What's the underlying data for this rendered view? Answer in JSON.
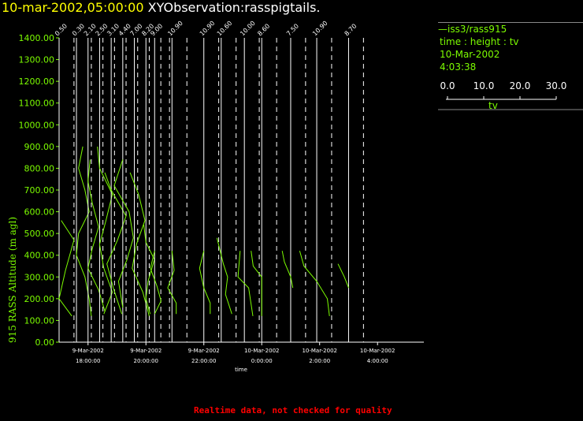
{
  "title": {
    "timestamp": "10-mar-2002,05:00:00",
    "name": "XYObservation:rasspigtails."
  },
  "legend": {
    "series": "—iss3/rass915",
    "axes": "time : height : tv",
    "date": "10-Mar-2002",
    "time": "4:03:38",
    "scale_ticks": [
      "0.0",
      "10.0",
      "20.0",
      "30.0"
    ],
    "scale_label": "tv"
  },
  "footer": "Realtime data, not checked for quality",
  "colors": {
    "data": "#7cfc00",
    "title_timestamp": "#ffff00",
    "warning": "#ff0000",
    "axis": "#ffffff"
  },
  "chart_data": {
    "type": "line",
    "ylabel": "915 RASS Altitude (m agl)",
    "xlabel": "time",
    "ylim": [
      0,
      1400
    ],
    "yticks": [
      "0.00",
      "100.00",
      "200.00",
      "300.00",
      "400.00",
      "500.00",
      "600.00",
      "700.00",
      "800.00",
      "900.00",
      "1000.00",
      "1100.00",
      "1200.00",
      "1300.00",
      "1400.00"
    ],
    "xticks": [
      {
        "date": "9-Mar-2002",
        "time": "18:00:00",
        "hour": 18
      },
      {
        "date": "9-Mar-2002",
        "time": "20:00:00",
        "hour": 20
      },
      {
        "date": "9-Mar-2002",
        "time": "22:00:00",
        "hour": 22
      },
      {
        "date": "10-Mar-2002",
        "time": "0:00:00",
        "hour": 24
      },
      {
        "date": "10-Mar-2002",
        "time": "2:00:00",
        "hour": 26
      },
      {
        "date": "10-Mar-2002",
        "time": "4:00:00",
        "hour": 28
      }
    ],
    "xlim_hours": [
      17.0,
      29.6
    ],
    "profiles": [
      {
        "hour": 17.0,
        "label": "0.50",
        "points": [
          [
            0.6,
            120
          ],
          [
            0.0,
            200
          ],
          [
            0.3,
            330
          ],
          [
            0.7,
            470
          ],
          [
            0.1,
            560
          ]
        ]
      },
      {
        "hour": 17.6,
        "label": "0.30",
        "points": [
          [
            0.3,
            900
          ],
          [
            0.1,
            800
          ],
          [
            0.4,
            700
          ],
          [
            0.6,
            600
          ],
          [
            0.1,
            500
          ],
          [
            0.0,
            400
          ],
          [
            0.4,
            300
          ],
          [
            0.6,
            200
          ],
          [
            0.7,
            120
          ]
        ]
      },
      {
        "hour": 18.0,
        "label": "2.10",
        "points": [
          [
            0.1,
            840
          ],
          [
            0.0,
            740
          ],
          [
            0.2,
            640
          ],
          [
            0.5,
            530
          ],
          [
            0.2,
            430
          ],
          [
            0.0,
            340
          ],
          [
            0.5,
            240
          ],
          [
            0.8,
            140
          ]
        ]
      },
      {
        "hour": 18.4,
        "label": "2.50",
        "points": [
          [
            -0.1,
            900
          ],
          [
            0.0,
            800
          ],
          [
            0.6,
            680
          ],
          [
            0.3,
            560
          ],
          [
            0.0,
            450
          ],
          [
            0.2,
            340
          ],
          [
            0.6,
            230
          ],
          [
            0.2,
            130
          ]
        ]
      },
      {
        "hour": 18.8,
        "label": "3.10",
        "points": [
          [
            -0.3,
            780
          ],
          [
            0.0,
            700
          ],
          [
            0.7,
            580
          ],
          [
            0.3,
            470
          ],
          [
            -0.2,
            360
          ],
          [
            0.1,
            250
          ],
          [
            0.5,
            130
          ]
        ]
      },
      {
        "hour": 19.2,
        "label": "4.40",
        "points": [
          [
            0.0,
            840
          ],
          [
            -0.4,
            720
          ],
          [
            0.3,
            600
          ],
          [
            0.5,
            480
          ],
          [
            0.2,
            380
          ],
          [
            -0.2,
            280
          ],
          [
            0.0,
            160
          ]
        ]
      },
      {
        "hour": 19.6,
        "label": "7.00",
        "points": [
          [
            -0.2,
            780
          ],
          [
            0.2,
            680
          ],
          [
            0.5,
            560
          ],
          [
            0.1,
            450
          ],
          [
            -0.1,
            340
          ],
          [
            0.4,
            230
          ],
          [
            0.7,
            120
          ]
        ]
      },
      {
        "hour": 20.0,
        "label": "8.20",
        "points": [
          [
            -0.1,
            540
          ],
          [
            0.0,
            460
          ],
          [
            0.4,
            380
          ],
          [
            0.1,
            280
          ],
          [
            0.0,
            200
          ],
          [
            0.2,
            130
          ]
        ]
      },
      {
        "hour": 20.3,
        "label": "9.00",
        "points": [
          [
            0.0,
            420
          ],
          [
            -0.2,
            340
          ],
          [
            0.1,
            260
          ],
          [
            0.3,
            190
          ],
          [
            0.0,
            130
          ]
        ]
      },
      {
        "hour": 20.9,
        "label": "10.90",
        "points": [
          [
            0.0,
            420
          ],
          [
            0.1,
            330
          ],
          [
            -0.2,
            250
          ],
          [
            0.2,
            180
          ],
          [
            0.2,
            130
          ]
        ]
      },
      {
        "hour": 22.0,
        "label": "10.90",
        "points": [
          [
            0.0,
            420
          ],
          [
            -0.2,
            340
          ],
          [
            0.0,
            250
          ],
          [
            0.3,
            180
          ],
          [
            0.3,
            130
          ]
        ]
      },
      {
        "hour": 22.6,
        "label": "10.60",
        "points": [
          [
            -0.2,
            480
          ],
          [
            0.1,
            360
          ],
          [
            0.3,
            300
          ],
          [
            0.2,
            220
          ],
          [
            0.5,
            130
          ]
        ]
      },
      {
        "hour": 23.4,
        "label": "10.00",
        "points": [
          [
            -0.2,
            420
          ],
          [
            -0.3,
            300
          ],
          [
            0.2,
            250
          ],
          [
            0.4,
            120
          ]
        ]
      },
      {
        "hour": 24.0,
        "label": "8.60",
        "points": [
          [
            -0.5,
            420
          ],
          [
            -0.4,
            350
          ],
          [
            0.0,
            300
          ],
          [
            0.0,
            220
          ],
          [
            0.0,
            120
          ]
        ]
      },
      {
        "hour": 25.0,
        "label": "7.50",
        "points": [
          [
            -0.4,
            420
          ],
          [
            -0.3,
            370
          ],
          [
            0.0,
            300
          ],
          [
            0.1,
            250
          ]
        ]
      },
      {
        "hour": 25.9,
        "label": "10.90",
        "points": [
          [
            -0.8,
            420
          ],
          [
            -0.6,
            350
          ],
          [
            0.0,
            280
          ],
          [
            0.5,
            200
          ],
          [
            0.6,
            120
          ]
        ]
      },
      {
        "hour": 27.0,
        "label": "8.70",
        "points": [
          [
            -0.5,
            360
          ],
          [
            -0.2,
            300
          ],
          [
            0.0,
            250
          ]
        ]
      }
    ]
  }
}
